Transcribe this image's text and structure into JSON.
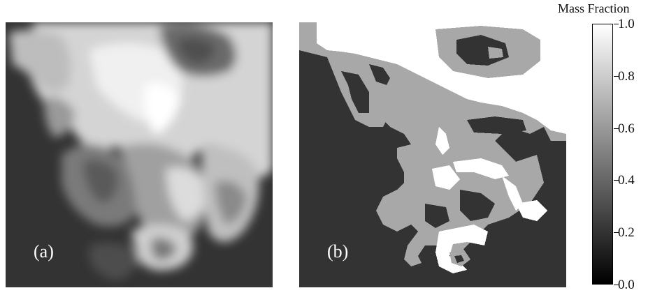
{
  "panels": [
    {
      "id": "a",
      "label": "(a)"
    },
    {
      "id": "b",
      "label": "(b)"
    }
  ],
  "colorbar": {
    "title": "Mass Fraction",
    "ticks": [
      "1.0",
      "0.8",
      "0.6",
      "0.4",
      "0.2",
      "0.0"
    ],
    "tick_values": [
      1.0,
      0.8,
      0.6,
      0.4,
      0.2,
      0.0
    ],
    "range": [
      0.0,
      1.0
    ]
  },
  "colors": {
    "background_field": "#333333",
    "mid_gray": "#a8a8a8",
    "white": "#ffffff",
    "dark": "#1a1a1a"
  }
}
